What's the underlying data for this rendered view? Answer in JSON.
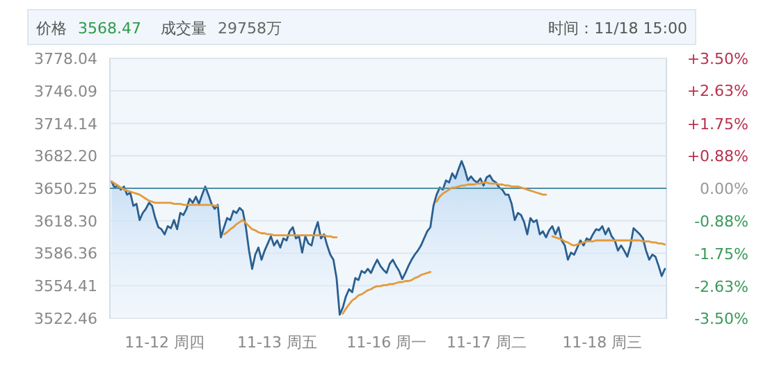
{
  "chart_data": {
    "type": "line",
    "annotations": [
      "价格",
      "3568.47",
      "成交量",
      "29758万",
      "时间：11/18 15:00"
    ],
    "categories": [
      null,
      null,
      null,
      null,
      null,
      null,
      null,
      null,
      null,
      null,
      null,
      null,
      null,
      null,
      null,
      null,
      null,
      "11-12 周四",
      null,
      null,
      null,
      null,
      null,
      null,
      null,
      null,
      null,
      null,
      null,
      null,
      null,
      null,
      null,
      null,
      null,
      null,
      null,
      null,
      null,
      null,
      null,
      null,
      null,
      null,
      null,
      null,
      null,
      null,
      null,
      null,
      null,
      null,
      null,
      "11-13 周五",
      null,
      null,
      null,
      null,
      null,
      null,
      null,
      null,
      null,
      null,
      null,
      null,
      null,
      null,
      null,
      null,
      null,
      null,
      null,
      null,
      null,
      null,
      null,
      null,
      null,
      null,
      null,
      null,
      null,
      null,
      null,
      null,
      null,
      null,
      "11-16 周一",
      null,
      null,
      null,
      null,
      null,
      null,
      null,
      null,
      null,
      null,
      null,
      null,
      null,
      null,
      null,
      null,
      null,
      null,
      null,
      null,
      null,
      null,
      null,
      null,
      null,
      null,
      null,
      null,
      null,
      null,
      null,
      "11-17 周二",
      null,
      null,
      null,
      null,
      null,
      null,
      null,
      null,
      null,
      null,
      null,
      null,
      null,
      null,
      null,
      null,
      null,
      null,
      null,
      null,
      null,
      null,
      null,
      null,
      null,
      null,
      null,
      null,
      null,
      null,
      null,
      null,
      null,
      null,
      null,
      null,
      "11-18 周三",
      null,
      null,
      null,
      null,
      null,
      null,
      null,
      null,
      null,
      null,
      null,
      null,
      null,
      null,
      null,
      null,
      null,
      null,
      null,
      null
    ],
    "ylim": [
      3522.46,
      3778.04
    ],
    "yticks": [
      3522.46,
      3554.41,
      3586.36,
      {
        "value": 3618.3,
        "label": "3618.30"
      },
      3650.25,
      {
        "value": 3682.2,
        "label": "3682.20"
      },
      3714.14,
      3746.09,
      3778.04
    ],
    "y2lim": [
      -3.5,
      3.5
    ],
    "y2ticks": [
      {
        "value": -3.5,
        "label": "-3.50%"
      },
      {
        "value": -2.63,
        "label": "-2.63%"
      },
      {
        "value": -1.75,
        "label": "-1.75%"
      },
      {
        "value": -0.88,
        "label": "-0.88%"
      },
      {
        "value": 0,
        "label": "0.00%"
      },
      {
        "value": 0.88,
        "label": "+0.88%"
      },
      {
        "value": 1.75,
        "label": "+1.75%"
      },
      {
        "value": 2.63,
        "label": "+2.63%"
      },
      {
        "value": 3.5,
        "label": "+3.50%"
      }
    ],
    "grid": "y",
    "ref_lines": [
      {
        "axis": "y",
        "value": 3650.25,
        "color": "#4f8fa3"
      }
    ],
    "series": [
      {
        "type": "area",
        "color": "#2a5f8f",
        "values": [
          3657,
          3651,
          3653,
          3649,
          3652,
          3644,
          3646,
          3633,
          3635,
          3619,
          3626,
          3630,
          3636,
          3633,
          3621,
          3612,
          3610,
          3605,
          3613,
          3611,
          3619,
          3610,
          3626,
          3624,
          3630,
          3640,
          3636,
          3642,
          3635,
          3644,
          3652,
          3644,
          3635,
          3630,
          3634,
          3602,
          3612,
          3621,
          3619,
          3628,
          3626,
          3631,
          3628,
          3612,
          3589,
          3571,
          3585,
          3592,
          3580,
          3589,
          3596,
          3603,
          3594,
          3599,
          3592,
          3601,
          3599,
          3608,
          3612,
          3601,
          3603,
          3587,
          3603,
          3596,
          3594,
          3608,
          3617,
          3601,
          3605,
          3594,
          3585,
          3580,
          3562,
          3526,
          3533,
          3544,
          3551,
          3548,
          3562,
          3560,
          3569,
          3567,
          3571,
          3567,
          3574,
          3580,
          3574,
          3570,
          3567,
          3576,
          3580,
          3574,
          3569,
          3561,
          3567,
          3574,
          3580,
          3585,
          3589,
          3594,
          3601,
          3608,
          3612,
          3633,
          3644,
          3651,
          3649,
          3658,
          3656,
          3665,
          3660,
          3669,
          3677,
          3669,
          3658,
          3662,
          3658,
          3656,
          3660,
          3653,
          3661,
          3663,
          3658,
          3656,
          3651,
          3649,
          3644,
          3644,
          3635,
          3619,
          3626,
          3624,
          3617,
          3605,
          3621,
          3617,
          3619,
          3605,
          3608,
          3602,
          3609,
          3613,
          3605,
          3612,
          3599,
          3594,
          3580,
          3587,
          3585,
          3592,
          3599,
          3594,
          3601,
          3599,
          3605,
          3610,
          3609,
          3613,
          3605,
          3611,
          3603,
          3599,
          3589,
          3594,
          3589,
          3583,
          3594,
          3611,
          3608,
          3605,
          3601,
          3589,
          3580,
          3585,
          3583,
          3574,
          3564,
          3571
        ]
      },
      {
        "color": "#e39a3b",
        "values": [
          3657,
          3655,
          3653,
          3651,
          3649,
          3648,
          3647,
          3646,
          3645,
          3644,
          3642,
          3640,
          3638,
          3637,
          3636,
          3636,
          3636,
          3636,
          3636,
          3636,
          3635,
          3635,
          3635,
          3634,
          3634,
          3634,
          3634,
          3634,
          3634,
          3634,
          3634,
          3634,
          3634,
          3633,
          3633,
          null,
          3605,
          3607,
          3610,
          3612,
          3615,
          3617,
          3619,
          3616,
          3613,
          3610,
          3609,
          3607,
          3606,
          3606,
          3605,
          3605,
          3604,
          3604,
          3604,
          3604,
          3604,
          3604,
          3604,
          3604,
          3604,
          3604,
          3604,
          3604,
          3604,
          3604,
          3604,
          3604,
          3604,
          3603,
          3603,
          3602,
          3602,
          null,
          3527,
          3532,
          3536,
          3540,
          3542,
          3545,
          3546,
          3548,
          3550,
          3551,
          3553,
          3554,
          3554,
          3555,
          3555,
          3556,
          3556,
          3557,
          3558,
          3558,
          3559,
          3559,
          3560,
          3562,
          3563,
          3565,
          3566,
          3567,
          3568,
          null,
          3637,
          3642,
          3645,
          3647,
          3649,
          3651,
          3651,
          3652,
          3653,
          3653,
          3654,
          3654,
          3654,
          3655,
          3655,
          3656,
          3656,
          3655,
          3655,
          3655,
          3654,
          3654,
          3653,
          3653,
          3652,
          3652,
          3652,
          3651,
          3650,
          3649,
          3648,
          3647,
          3646,
          3645,
          3644,
          3644,
          null,
          3603,
          3602,
          3601,
          3600,
          3598,
          3597,
          3595,
          3594,
          3595,
          3596,
          3597,
          3598,
          3598,
          3598,
          3599,
          3599,
          3599,
          3599,
          3599,
          3599,
          3599,
          3599,
          3599,
          3599,
          3599,
          3599,
          3599,
          3599,
          3599,
          3598,
          3598,
          3598,
          3597,
          3597,
          3596,
          3596,
          3595
        ]
      }
    ]
  }
}
